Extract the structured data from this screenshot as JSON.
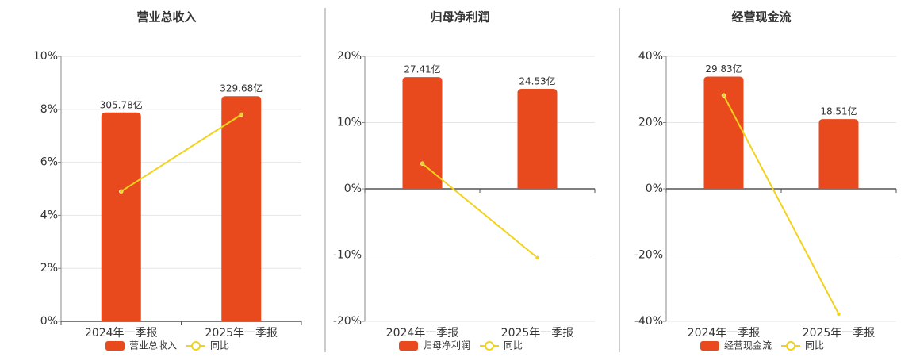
{
  "chart_data": [
    {
      "type": "bar",
      "title": "营业总收入",
      "categories": [
        "2024年一季报",
        "2025年一季报"
      ],
      "series": [
        {
          "name": "营业总收入",
          "color": "#e8491d",
          "axis": "y2",
          "values": [
            305.78,
            329.68
          ],
          "value_labels": [
            "305.78亿",
            "329.68亿"
          ]
        },
        {
          "name": "同比",
          "color": "#f2d21b",
          "type": "line",
          "values": [
            4.9,
            7.8
          ]
        }
      ],
      "ylim": [
        0,
        10
      ],
      "yticks": [
        {
          "value": 0,
          "label": "0%"
        },
        {
          "value": 2,
          "label": "2%"
        },
        {
          "value": 4,
          "label": "4%"
        },
        {
          "value": 6,
          "label": "6%"
        },
        {
          "value": 8,
          "label": "8%"
        },
        {
          "value": 10,
          "label": "10%"
        }
      ],
      "y2lim": [
        0,
        388
      ],
      "grid": true
    },
    {
      "type": "bar",
      "title": "归母净利润",
      "categories": [
        "2024年一季报",
        "2025年一季报"
      ],
      "series": [
        {
          "name": "归母净利润",
          "color": "#e8491d",
          "axis": "y2",
          "values": [
            27.41,
            24.53
          ],
          "value_labels": [
            "27.41亿",
            "24.53亿"
          ]
        },
        {
          "name": "同比",
          "color": "#f2d21b",
          "type": "line",
          "values": [
            3.8,
            -10.4
          ]
        }
      ],
      "ylim": [
        -20,
        20
      ],
      "yticks": [
        {
          "value": -20,
          "label": "-20%"
        },
        {
          "value": -10,
          "label": "-10%"
        },
        {
          "value": 0,
          "label": "0%"
        },
        {
          "value": 10,
          "label": "10%"
        },
        {
          "value": 20,
          "label": "20%"
        }
      ],
      "y2lim": [
        -32.5,
        32.5
      ],
      "grid": true
    },
    {
      "type": "bar",
      "title": "经营现金流",
      "categories": [
        "2024年一季报",
        "2025年一季报"
      ],
      "series": [
        {
          "name": "经营现金流",
          "color": "#e8491d",
          "axis": "y2",
          "values": [
            29.83,
            18.51
          ],
          "value_labels": [
            "29.83亿",
            "18.51亿"
          ]
        },
        {
          "name": "同比",
          "color": "#f2d21b",
          "type": "line",
          "values": [
            28.2,
            -37.8
          ]
        }
      ],
      "ylim": [
        -40,
        40
      ],
      "yticks": [
        {
          "value": -40,
          "label": "-40%"
        },
        {
          "value": -20,
          "label": "-20%"
        },
        {
          "value": 0,
          "label": "0%"
        },
        {
          "value": 20,
          "label": "20%"
        },
        {
          "value": 40,
          "label": "40%"
        }
      ],
      "y2lim": [
        -35.2,
        35.2
      ],
      "grid": true
    }
  ]
}
